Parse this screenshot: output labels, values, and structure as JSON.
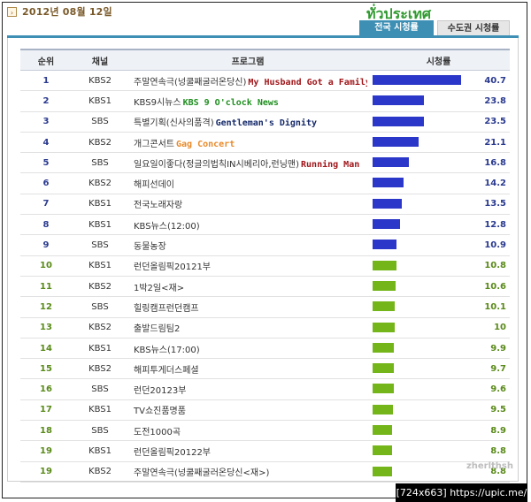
{
  "date": "2012년 08월 12일",
  "arrow_glyph": "›",
  "overlay_title": "ทั่วประเทศ",
  "tabs": [
    {
      "label": "전국 시청률",
      "active": true
    },
    {
      "label": "수도권 시청률",
      "active": false
    }
  ],
  "table": {
    "headers": {
      "rank": "순위",
      "channel": "채널",
      "program": "프로그램",
      "rating": "시청률"
    },
    "rows": [
      {
        "rank": "1",
        "channel": "KBS2",
        "program": "주말연속극(넝쿨째굴러온당신)",
        "english": "My Husband Got a Family",
        "english_color": "#a0161a",
        "value": "40.7",
        "bar_color": "#2b37c8"
      },
      {
        "rank": "2",
        "channel": "KBS1",
        "program": "KBS9시뉴스",
        "english": "KBS 9 O'clock News",
        "english_color": "#1f8f1f",
        "value": "23.8",
        "bar_color": "#2b37c8"
      },
      {
        "rank": "3",
        "channel": "SBS",
        "program": "특별기획(신사의품격)",
        "english": "Gentleman's Dignity",
        "english_color": "#162a6a",
        "value": "23.5",
        "bar_color": "#2b37c8"
      },
      {
        "rank": "4",
        "channel": "KBS2",
        "program": "개그콘서트",
        "english": "Gag Concert",
        "english_color": "#e88a2a",
        "value": "21.1",
        "bar_color": "#2b37c8"
      },
      {
        "rank": "5",
        "channel": "SBS",
        "program": "일요일이좋다(정글의법칙IN시베리아,런닝맨)",
        "english": "Running Man",
        "english_color": "#a0161a",
        "value": "16.8",
        "bar_color": "#2b37c8"
      },
      {
        "rank": "6",
        "channel": "KBS2",
        "program": "해피선데이",
        "english": "",
        "english_color": "",
        "value": "14.2",
        "bar_color": "#2b37c8"
      },
      {
        "rank": "7",
        "channel": "KBS1",
        "program": "전국노래자랑",
        "english": "",
        "english_color": "",
        "value": "13.5",
        "bar_color": "#2b37c8"
      },
      {
        "rank": "8",
        "channel": "KBS1",
        "program": "KBS뉴스(12:00)",
        "english": "",
        "english_color": "",
        "value": "12.8",
        "bar_color": "#2b37c8"
      },
      {
        "rank": "9",
        "channel": "SBS",
        "program": "동물농장",
        "english": "",
        "english_color": "",
        "value": "10.9",
        "bar_color": "#2b37c8"
      },
      {
        "rank": "10",
        "channel": "KBS1",
        "program": "런던올림픽20121부",
        "english": "",
        "english_color": "",
        "value": "10.8",
        "bar_color": "#74b51a"
      },
      {
        "rank": "11",
        "channel": "KBS2",
        "program": "1박2일<재>",
        "english": "",
        "english_color": "",
        "value": "10.6",
        "bar_color": "#74b51a"
      },
      {
        "rank": "12",
        "channel": "SBS",
        "program": "힐링캠프런던캠프",
        "english": "",
        "english_color": "",
        "value": "10.1",
        "bar_color": "#74b51a"
      },
      {
        "rank": "13",
        "channel": "KBS2",
        "program": "출발드림팀2",
        "english": "",
        "english_color": "",
        "value": "10",
        "bar_color": "#74b51a"
      },
      {
        "rank": "14",
        "channel": "KBS1",
        "program": "KBS뉴스(17:00)",
        "english": "",
        "english_color": "",
        "value": "9.9",
        "bar_color": "#74b51a"
      },
      {
        "rank": "15",
        "channel": "KBS2",
        "program": "해피투게더스페셜",
        "english": "",
        "english_color": "",
        "value": "9.7",
        "bar_color": "#74b51a"
      },
      {
        "rank": "16",
        "channel": "SBS",
        "program": "런던20123부",
        "english": "",
        "english_color": "",
        "value": "9.6",
        "bar_color": "#74b51a"
      },
      {
        "rank": "17",
        "channel": "KBS1",
        "program": "TV쇼진품명품",
        "english": "",
        "english_color": "",
        "value": "9.5",
        "bar_color": "#74b51a"
      },
      {
        "rank": "18",
        "channel": "SBS",
        "program": "도전1000곡",
        "english": "",
        "english_color": "",
        "value": "8.9",
        "bar_color": "#74b51a"
      },
      {
        "rank": "19",
        "channel": "KBS1",
        "program": "런던올림픽20122부",
        "english": "",
        "english_color": "",
        "value": "8.8",
        "bar_color": "#74b51a"
      },
      {
        "rank": "19",
        "channel": "KBS2",
        "program": "주말연속극(넝쿨째굴러온당신<재>)",
        "english": "",
        "english_color": "",
        "value": "8.8",
        "bar_color": "#74b51a"
      }
    ]
  },
  "rating_max": 40.7,
  "rank_color_blue": "#2a3a8f",
  "rank_color_green": "#5a8a1a",
  "credit": "zherlthsh",
  "footer": "[724x663] https://upic.me/"
}
